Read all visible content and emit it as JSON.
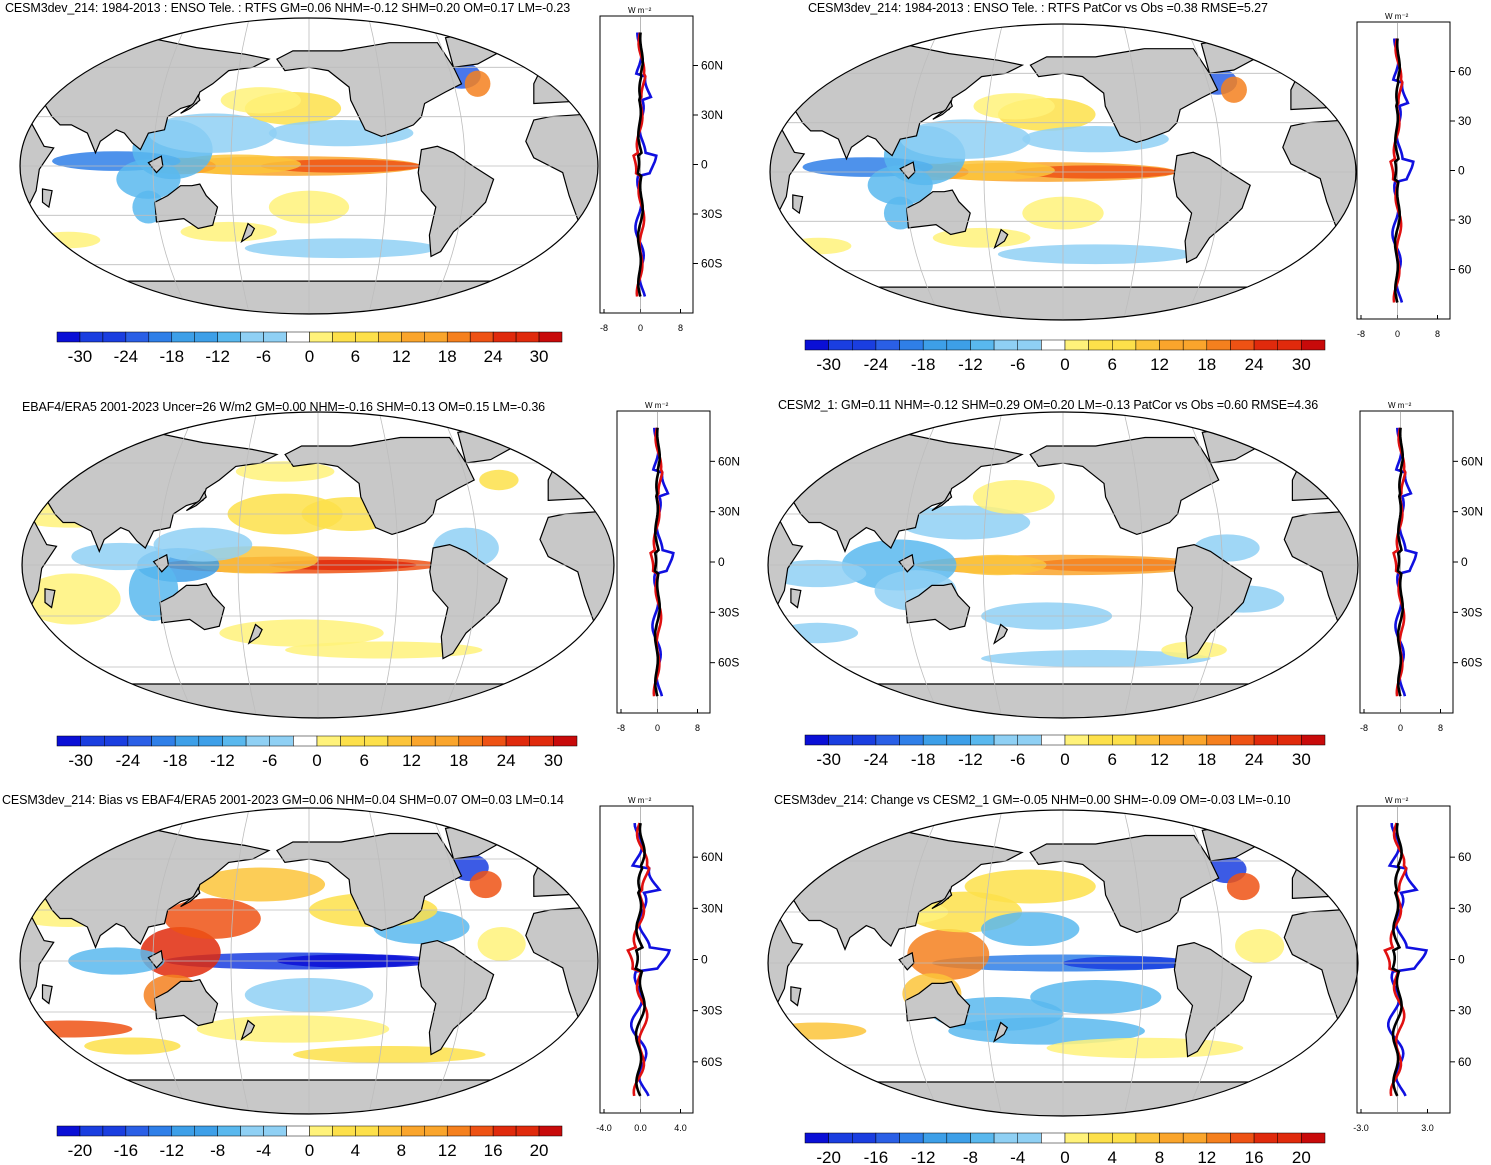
{
  "panels": [
    {
      "id": "p1",
      "title": "CESM3dev_214: 1984-2013 : ENSO Tele. : RTFS GM=0.06 NHM=-0.12 SHM=0.20 OM=0.17 LM=-0.23",
      "colorbar_ticks": [
        "-30",
        "-24",
        "-18",
        "-12",
        "-6",
        "0",
        "6",
        "12",
        "18",
        "24",
        "30"
      ],
      "zonal_unit": "W m⁻²",
      "zonal_lat_labels": [
        "60N",
        "30N",
        "0",
        "30S",
        "60S"
      ],
      "zonal_x_labels": [
        "-8",
        "0",
        "8"
      ]
    },
    {
      "id": "p2",
      "title": "CESM3dev_214: 1984-2013 : ENSO Tele. : RTFS PatCor vs Obs =0.38 RMSE=5.27",
      "colorbar_ticks": [
        "-30",
        "-24",
        "-18",
        "-12",
        "-6",
        "0",
        "6",
        "12",
        "18",
        "24",
        "30"
      ],
      "zonal_unit": "W m⁻²",
      "zonal_lat_labels": [
        "60",
        "30",
        "0",
        "30",
        "60"
      ],
      "zonal_x_labels": [
        "-8",
        "0",
        "8"
      ]
    },
    {
      "id": "p3",
      "title": "EBAF4/ERA5 2001-2023 Uncer=26 W/m2 GM=0.00 NHM=-0.16 SHM=0.13 OM=0.15 LM=-0.36",
      "colorbar_ticks": [
        "-30",
        "-24",
        "-18",
        "-12",
        "-6",
        "0",
        "6",
        "12",
        "18",
        "24",
        "30"
      ],
      "zonal_unit": "W m⁻²",
      "zonal_lat_labels": [
        "60N",
        "30N",
        "0",
        "30S",
        "60S"
      ],
      "zonal_x_labels": [
        "-8",
        "0",
        "8"
      ]
    },
    {
      "id": "p4",
      "title": "CESM2_1: GM=0.11 NHM=-0.12 SHM=0.29 OM=0.20 LM=-0.13 PatCor vs Obs =0.60 RMSE=4.36",
      "colorbar_ticks": [
        "-30",
        "-24",
        "-18",
        "-12",
        "-6",
        "0",
        "6",
        "12",
        "18",
        "24",
        "30"
      ],
      "zonal_unit": "W m⁻²",
      "zonal_lat_labels": [
        "60N",
        "30N",
        "0",
        "30S",
        "60S"
      ],
      "zonal_x_labels": [
        "-8",
        "0",
        "8"
      ]
    },
    {
      "id": "p5",
      "title": "CESM3dev_214: Bias vs EBAF4/ERA5 2001-2023 GM=0.06 NHM=0.04 SHM=0.07 OM=0.03 LM=0.14",
      "colorbar_ticks": [
        "-20",
        "-16",
        "-12",
        "-8",
        "-4",
        "0",
        "4",
        "8",
        "12",
        "16",
        "20"
      ],
      "zonal_unit": "W m⁻²",
      "zonal_lat_labels": [
        "60N",
        "30N",
        "0",
        "30S",
        "60S"
      ],
      "zonal_x_labels": [
        "-4.0",
        "0.0",
        "4.0"
      ]
    },
    {
      "id": "p6",
      "title": "CESM3dev_214: Change vs CESM2_1 GM=-0.05 NHM=0.00 SHM=-0.09 OM=-0.03 LM=-0.10",
      "colorbar_ticks": [
        "-20",
        "-16",
        "-12",
        "-8",
        "-4",
        "0",
        "4",
        "8",
        "12",
        "16",
        "20"
      ],
      "zonal_unit": "W m⁻²",
      "zonal_lat_labels": [
        "60",
        "30",
        "0",
        "30",
        "60"
      ],
      "zonal_x_labels": [
        "-3.0",
        "3.0"
      ]
    }
  ],
  "colors": {
    "land": "#c8c8c8",
    "ocean": "#ffffff",
    "scale": [
      "#0a0fd6",
      "#1a3ee0",
      "#2a5fe6",
      "#2f7fe8",
      "#3d9fe8",
      "#59b8ee",
      "#8fd0f4",
      "#ffffff",
      "#fff27a",
      "#fde04a",
      "#fcc43a",
      "#faa52c",
      "#f5801e",
      "#ee5214",
      "#e02a0c",
      "#c80a0a"
    ],
    "zonal_model": "#1010e0",
    "zonal_obs": "#e01010",
    "zonal_diff": "#000000"
  }
}
